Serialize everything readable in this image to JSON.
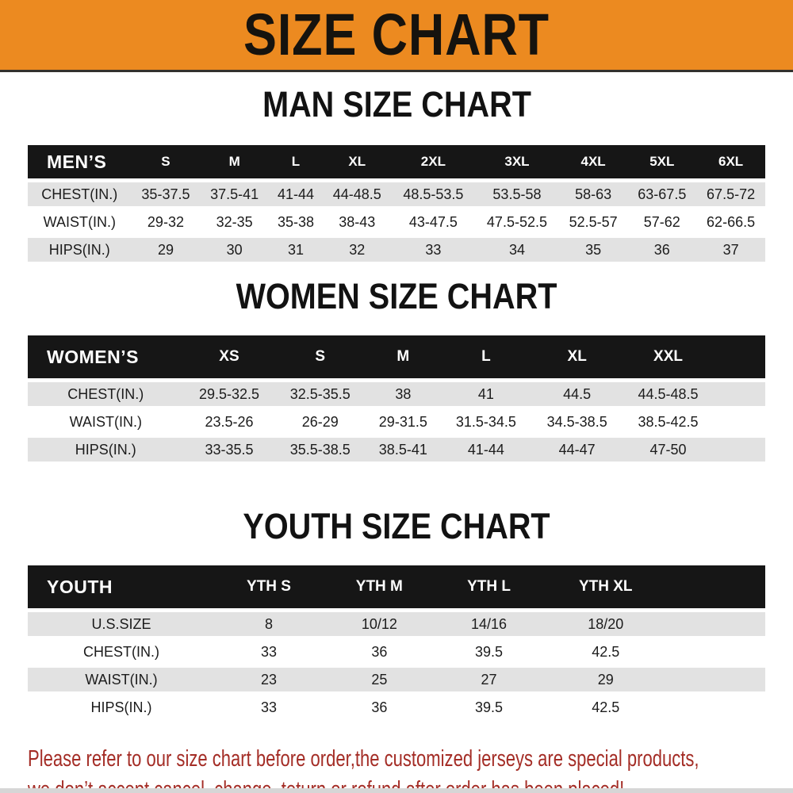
{
  "banner": {
    "title": "SIZE CHART"
  },
  "colors": {
    "banner_bg": "#EC8A20",
    "header_bar": "#161616",
    "row_stripe": "#E2E2E2",
    "footer_text": "#A42D26"
  },
  "sections": [
    {
      "title": "MAN SIZE CHART",
      "group_label": "MEN’S",
      "columns": [
        "S",
        "M",
        "L",
        "XL",
        "2XL",
        "3XL",
        "4XL",
        "5XL",
        "6XL"
      ],
      "rows": [
        {
          "label": "CHEST(IN.)",
          "values": [
            "35-37.5",
            "37.5-41",
            "41-44",
            "44-48.5",
            "48.5-53.5",
            "53.5-58",
            "58-63",
            "63-67.5",
            "67.5-72"
          ]
        },
        {
          "label": "WAIST(IN.)",
          "values": [
            "29-32",
            "32-35",
            "35-38",
            "38-43",
            "43-47.5",
            "47.5-52.5",
            "52.5-57",
            "57-62",
            "62-66.5"
          ]
        },
        {
          "label": "HIPS(IN.)",
          "values": [
            "29",
            "30",
            "31",
            "32",
            "33",
            "34",
            "35",
            "36",
            "37"
          ]
        }
      ]
    },
    {
      "title": "WOMEN SIZE CHART",
      "group_label": "WOMEN’S",
      "columns": [
        "XS",
        "S",
        "M",
        "L",
        "XL",
        "XXL"
      ],
      "rows": [
        {
          "label": "CHEST(IN.)",
          "values": [
            "29.5-32.5",
            "32.5-35.5",
            "38",
            "41",
            "44.5",
            "44.5-48.5"
          ]
        },
        {
          "label": "WAIST(IN.)",
          "values": [
            "23.5-26",
            "26-29",
            "29-31.5",
            "31.5-34.5",
            "34.5-38.5",
            "38.5-42.5"
          ]
        },
        {
          "label": "HIPS(IN.)",
          "values": [
            "33-35.5",
            "35.5-38.5",
            "38.5-41",
            "41-44",
            "44-47",
            "47-50"
          ]
        }
      ]
    },
    {
      "title": "YOUTH SIZE CHART",
      "group_label": "YOUTH",
      "columns": [
        "YTH S",
        "YTH M",
        "YTH L",
        "YTH XL"
      ],
      "rows": [
        {
          "label": "U.S.SIZE",
          "values": [
            "8",
            "10/12",
            "14/16",
            "18/20"
          ]
        },
        {
          "label": "CHEST(IN.)",
          "values": [
            "33",
            "36",
            "39.5",
            "42.5"
          ]
        },
        {
          "label": "WAIST(IN.)",
          "values": [
            "23",
            "25",
            "27",
            "29"
          ]
        },
        {
          "label": "HIPS(IN.)",
          "values": [
            "33",
            "36",
            "39.5",
            "42.5"
          ]
        }
      ]
    }
  ],
  "footer": {
    "line1": "Please refer to our size chart before order,the customized jerseys are special products,",
    "line2": "we don’t accept cancel, change, teturn or refund after order has been placed!"
  }
}
